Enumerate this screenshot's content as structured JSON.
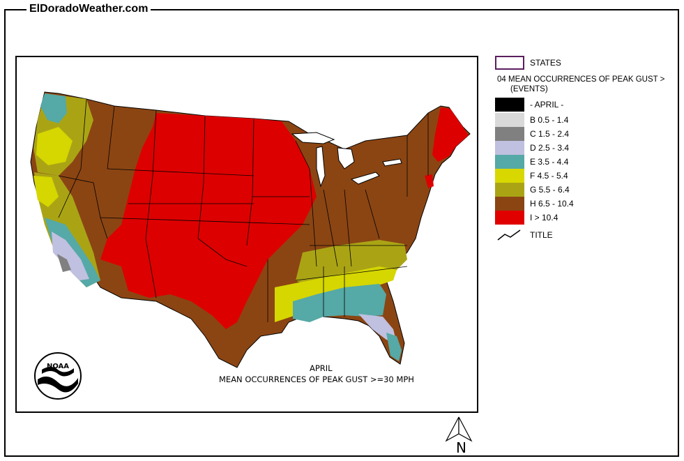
{
  "header": {
    "site_title": "ElDoradoWeather.com"
  },
  "map": {
    "caption_line1": "APRIL",
    "caption_line2": "MEAN OCCURRENCES OF PEAK GUST >=30 MPH",
    "logo_text": "NOAA"
  },
  "legend": {
    "states_label": "STATES",
    "heading": "04 MEAN OCCURRENCES OF PEAK GUST >",
    "subheading": "(EVENTS)",
    "items": [
      {
        "label": "- APRIL -",
        "color": "#000000"
      },
      {
        "label": "B 0.5 - 1.4",
        "color": "#d9d9d9"
      },
      {
        "label": "C 1.5 - 2.4",
        "color": "#808080"
      },
      {
        "label": "D 2.5 - 3.4",
        "color": "#c0c0e0"
      },
      {
        "label": "E 3.5 - 4.4",
        "color": "#55a9a6"
      },
      {
        "label": "F 4.5 - 5.4",
        "color": "#d8d800"
      },
      {
        "label": "G 5.5 - 6.4",
        "color": "#aaa415"
      },
      {
        "label": "H 6.5 - 10.4",
        "color": "#8b4513"
      },
      {
        "label": "I > 10.4",
        "color": "#e00000"
      }
    ],
    "title_label": "TITLE"
  },
  "compass": {
    "label": "N"
  },
  "colors": {
    "red": "#dd0000",
    "brown": "#8b4513",
    "olive": "#aaa415",
    "yellow": "#d6d600",
    "teal": "#55a9a6",
    "lavender": "#c0c0e0",
    "gray": "#808080",
    "border": "#000000"
  }
}
